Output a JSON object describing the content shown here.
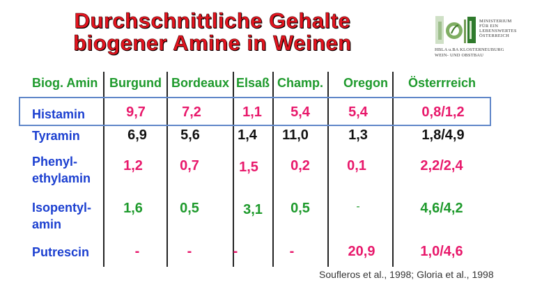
{
  "title": {
    "line1": "Durchschnittliche Gehalte",
    "line2": "biogener Amine in Weinen"
  },
  "logo": {
    "ministry_lines": [
      "MINISTERIUM",
      "FÜR EIN",
      "LEBENSWERTES",
      "ÖSTERREICH"
    ],
    "school_lines": [
      "HBLA u.BA KLOSTERNEUBURG",
      "WEIN- UND OBSTBAU"
    ]
  },
  "colors": {
    "title": "#e3141f",
    "header": "#1e9a2c",
    "row_label": "#1b3fd0",
    "pink": "#e8186b",
    "black": "#111111",
    "green": "#1e9a2c",
    "highlight_border": "#5f86c8"
  },
  "table": {
    "header": {
      "corner": "Biog. Amin",
      "columns": [
        "Burgund",
        "Bordeaux",
        "Elsaß",
        "Champ.",
        "Oregon",
        "Österrreich"
      ]
    },
    "rows": [
      {
        "label": [
          "Histamin"
        ],
        "values": [
          "9,7",
          "7,2",
          "1,1",
          "5,4",
          "5,4",
          "0,8/1,2"
        ]
      },
      {
        "label": [
          "Tyramin"
        ],
        "values": [
          "6,9",
          "5,6",
          "1,4",
          "11,0",
          "1,3",
          "1,8/4,9"
        ]
      },
      {
        "label": [
          "Phenyl-",
          "ethylamin"
        ],
        "values": [
          "1,2",
          "0,7",
          "1,5",
          "0,2",
          "0,1",
          "2,2/2,4"
        ]
      },
      {
        "label": [
          "Isopentyl-",
          "amin"
        ],
        "values": [
          "1,6",
          "0,5",
          "3,1",
          "0,5",
          "-",
          "4,6/4,2"
        ]
      },
      {
        "label": [
          "Putrescin"
        ],
        "values": [
          "-",
          "-",
          "-",
          "-",
          "20,9",
          "1,0/4,6"
        ]
      }
    ]
  },
  "source": "Soufleros et al., 1998; Gloria et al., 1998"
}
